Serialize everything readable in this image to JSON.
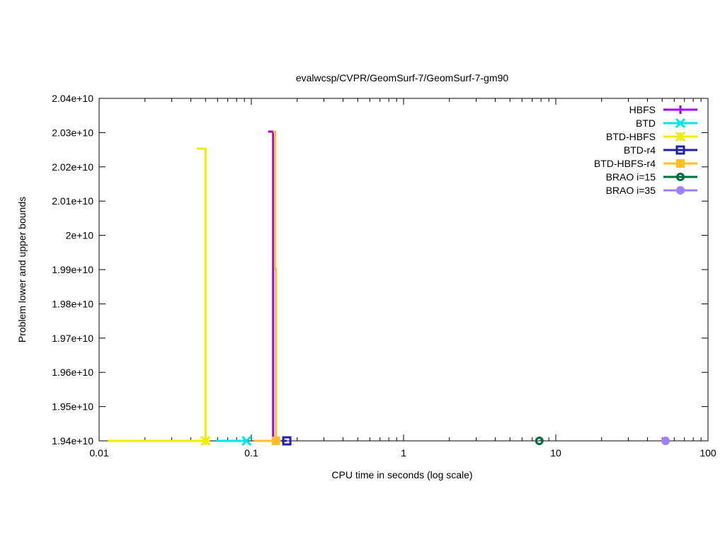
{
  "chart_data": {
    "type": "line",
    "title": "evalwcsp/CVPR/GeomSurf-7/GeomSurf-7-gm90",
    "xlabel": "CPU time in seconds (log scale)",
    "ylabel": "Problem lower and upper bounds",
    "xscale": "log",
    "xlim": [
      0.01,
      100
    ],
    "ylim": [
      19400000000.0,
      20400000000.0
    ],
    "xticks": [
      {
        "v": 0.01,
        "label": "0.01"
      },
      {
        "v": 0.1,
        "label": "0.1"
      },
      {
        "v": 1,
        "label": "1"
      },
      {
        "v": 10,
        "label": "10"
      },
      {
        "v": 100,
        "label": "100"
      }
    ],
    "yticks": [
      {
        "v": 19400000000.0,
        "label": "1.94e+10"
      },
      {
        "v": 19500000000.0,
        "label": "1.95e+10"
      },
      {
        "v": 19600000000.0,
        "label": "1.96e+10"
      },
      {
        "v": 19700000000.0,
        "label": "1.97e+10"
      },
      {
        "v": 19800000000.0,
        "label": "1.98e+10"
      },
      {
        "v": 19900000000.0,
        "label": "1.99e+10"
      },
      {
        "v": 20000000000.0,
        "label": "2e+10"
      },
      {
        "v": 20100000000.0,
        "label": "2.01e+10"
      },
      {
        "v": 20200000000.0,
        "label": "2.02e+10"
      },
      {
        "v": 20300000000.0,
        "label": "2.03e+10"
      },
      {
        "v": 20400000000.0,
        "label": "2.04e+10"
      }
    ],
    "legend_position": "top-right",
    "grid": false,
    "series": [
      {
        "name": "HBFS",
        "color": "#a000f0",
        "marker": "plus",
        "upper": [
          [
            0.129,
            20303000000.0
          ],
          [
            0.139,
            20303000000.0
          ],
          [
            0.139,
            19400000000.0
          ]
        ],
        "lower": [
          [
            0.13,
            19400000000.0
          ],
          [
            0.139,
            19400000000.0
          ]
        ],
        "marker_points": []
      },
      {
        "name": "BTD",
        "color": "#00e5e5",
        "marker": "cross",
        "upper": [],
        "lower": [
          [
            0.0585,
            19400000000.0
          ],
          [
            0.093,
            19400000000.0
          ]
        ],
        "marker_points": [
          [
            0.093,
            19400000000.0
          ]
        ]
      },
      {
        "name": "BTD-HBFS",
        "color": "#eeee00",
        "marker": "star",
        "upper": [
          [
            0.0438,
            20253000000.0
          ],
          [
            0.05,
            20253000000.0
          ],
          [
            0.05,
            19400000000.0
          ]
        ],
        "lower": [
          [
            0.0114,
            19400000000.0
          ],
          [
            0.05,
            19400000000.0
          ]
        ],
        "marker_points": [
          [
            0.05,
            19400000000.0
          ]
        ]
      },
      {
        "name": "BTD-r4",
        "color": "#2020b0",
        "marker": "open-square",
        "upper": [],
        "lower": [
          [
            0.158,
            19400000000.0
          ],
          [
            0.171,
            19400000000.0
          ]
        ],
        "marker_points": [
          [
            0.171,
            19400000000.0
          ]
        ]
      },
      {
        "name": "BTD-HBFS-r4",
        "color": "#ffc020",
        "marker": "filled-square",
        "upper": [
          [
            0.139,
            20303000000.0
          ],
          [
            0.143,
            20303000000.0
          ],
          [
            0.143,
            19902000000.0
          ],
          [
            0.145,
            19902000000.0
          ],
          [
            0.145,
            19400000000.0
          ]
        ],
        "lower": [
          [
            0.104,
            19400000000.0
          ],
          [
            0.145,
            19400000000.0
          ]
        ],
        "marker_points": [
          [
            0.145,
            19400000000.0
          ]
        ]
      },
      {
        "name": "BRAO i=15",
        "color": "#006d3c",
        "marker": "open-circle",
        "upper": [],
        "lower": [],
        "marker_points": [
          [
            7.8,
            19400000000.0
          ]
        ]
      },
      {
        "name": "BRAO i=35",
        "color": "#a080ff",
        "marker": "filled-circle",
        "upper": [],
        "lower": [],
        "marker_points": [
          [
            52.6,
            19400000000.0
          ]
        ]
      }
    ]
  }
}
